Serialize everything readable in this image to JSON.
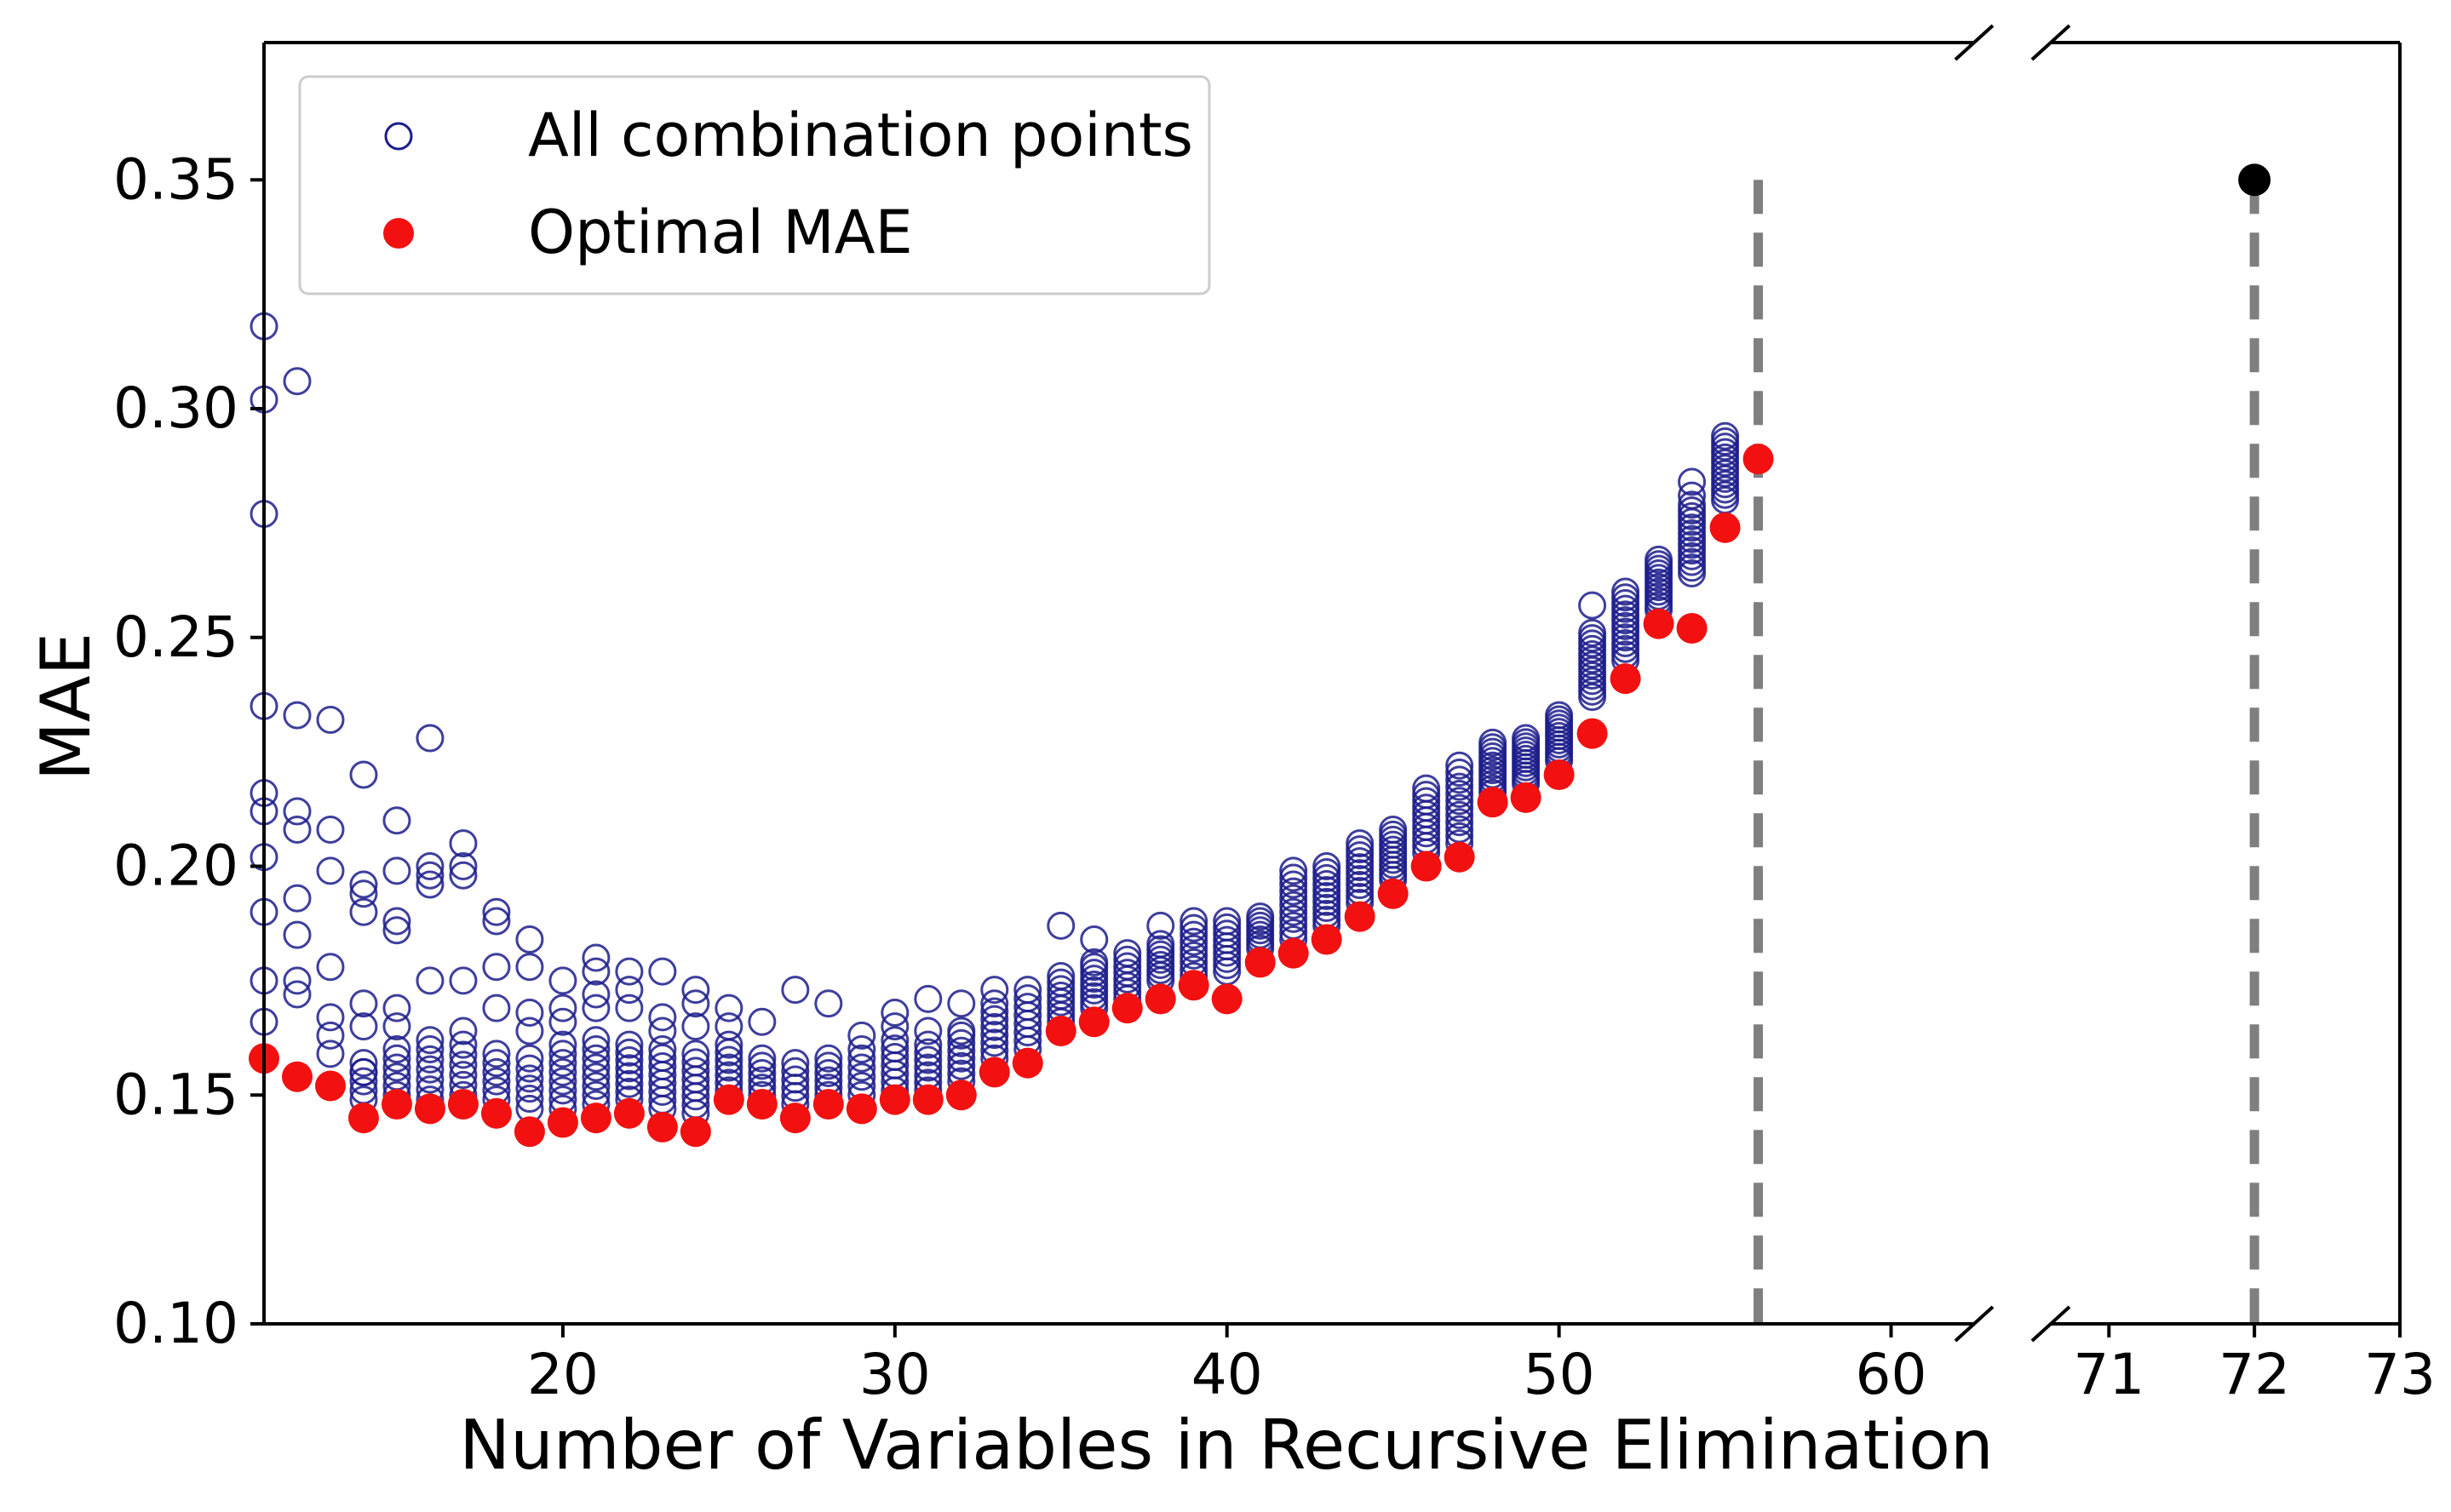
{
  "chart_data": {
    "type": "scatter",
    "xlabel": "Number of Variables in Recursive Elimination",
    "ylabel": "MAE",
    "ylim": [
      0.1,
      0.38
    ],
    "yticks": [
      "0.10",
      "0.15",
      "0.20",
      "0.25",
      "0.30",
      "0.35"
    ],
    "x_axis_segments": [
      {
        "xlim": [
          11,
          62.5
        ],
        "ticks": [
          "20",
          "30",
          "40",
          "50",
          "60"
        ]
      },
      {
        "xlim": [
          70.6,
          73
        ],
        "ticks": [
          "71",
          "72",
          "73"
        ]
      }
    ],
    "x_axis_break": true,
    "legend": {
      "position": "top-left",
      "entries": [
        "All combination points",
        "Optimal MAE"
      ]
    },
    "grid": false,
    "colors": {
      "all_points": "#1c1c8c",
      "optimal": "#f21010",
      "full_model": "#000000",
      "reference_line": "#7f7f7f"
    },
    "series": [
      {
        "name": "All combination points",
        "marker": "open-circle",
        "outliers": [
          [
            11,
            0.318
          ],
          [
            11,
            0.302
          ],
          [
            11,
            0.277
          ],
          [
            11,
            0.235
          ],
          [
            11,
            0.216
          ],
          [
            11,
            0.212
          ],
          [
            11,
            0.202
          ],
          [
            11,
            0.19
          ],
          [
            11,
            0.175
          ],
          [
            11,
            0.166
          ],
          [
            12,
            0.306
          ],
          [
            12,
            0.233
          ],
          [
            12,
            0.212
          ],
          [
            12,
            0.208
          ],
          [
            12,
            0.193
          ],
          [
            12,
            0.185
          ],
          [
            12,
            0.175
          ],
          [
            12,
            0.172
          ],
          [
            13,
            0.232
          ],
          [
            13,
            0.208
          ],
          [
            13,
            0.199
          ],
          [
            13,
            0.178
          ],
          [
            13,
            0.167
          ],
          [
            13,
            0.163
          ],
          [
            13,
            0.159
          ],
          [
            14,
            0.22
          ],
          [
            14,
            0.196
          ],
          [
            14,
            0.194
          ],
          [
            14,
            0.19
          ],
          [
            14,
            0.17
          ],
          [
            14,
            0.165
          ],
          [
            14,
            0.155
          ],
          [
            15,
            0.21
          ],
          [
            15,
            0.199
          ],
          [
            15,
            0.188
          ],
          [
            15,
            0.186
          ],
          [
            15,
            0.169
          ],
          [
            15,
            0.165
          ],
          [
            16,
            0.228
          ],
          [
            16,
            0.2
          ],
          [
            16,
            0.198
          ],
          [
            16,
            0.196
          ],
          [
            16,
            0.175
          ],
          [
            16,
            0.162
          ],
          [
            17,
            0.205
          ],
          [
            17,
            0.2
          ],
          [
            17,
            0.198
          ],
          [
            17,
            0.175
          ],
          [
            17,
            0.164
          ],
          [
            18,
            0.19
          ],
          [
            18,
            0.188
          ],
          [
            18,
            0.178
          ],
          [
            18,
            0.169
          ],
          [
            19,
            0.184
          ],
          [
            19,
            0.178
          ],
          [
            19,
            0.168
          ],
          [
            19,
            0.164
          ],
          [
            20,
            0.175
          ],
          [
            20,
            0.169
          ],
          [
            20,
            0.166
          ],
          [
            21,
            0.18
          ],
          [
            21,
            0.177
          ],
          [
            21,
            0.172
          ],
          [
            21,
            0.169
          ],
          [
            22,
            0.177
          ],
          [
            22,
            0.173
          ],
          [
            22,
            0.169
          ],
          [
            23,
            0.177
          ],
          [
            23,
            0.167
          ],
          [
            23,
            0.164
          ],
          [
            24,
            0.173
          ],
          [
            24,
            0.17
          ],
          [
            24,
            0.165
          ],
          [
            25,
            0.169
          ],
          [
            25,
            0.165
          ],
          [
            26,
            0.166
          ],
          [
            27,
            0.173
          ],
          [
            28,
            0.17
          ],
          [
            29,
            0.163
          ],
          [
            30,
            0.168
          ],
          [
            30,
            0.165
          ],
          [
            31,
            0.171
          ],
          [
            31,
            0.164
          ],
          [
            32,
            0.17
          ],
          [
            32,
            0.164
          ],
          [
            33,
            0.173
          ],
          [
            35,
            0.187
          ],
          [
            36,
            0.184
          ],
          [
            36,
            0.179
          ],
          [
            38,
            0.187
          ],
          [
            54,
            0.284
          ],
          [
            54,
            0.281
          ],
          [
            51,
            0.257
          ]
        ],
        "columns": [
          {
            "x": 14,
            "lo": 0.149,
            "hi": 0.157,
            "n": 5
          },
          {
            "x": 15,
            "lo": 0.15,
            "hi": 0.16,
            "n": 6
          },
          {
            "x": 16,
            "lo": 0.149,
            "hi": 0.16,
            "n": 6
          },
          {
            "x": 17,
            "lo": 0.15,
            "hi": 0.161,
            "n": 6
          },
          {
            "x": 18,
            "lo": 0.149,
            "hi": 0.159,
            "n": 6
          },
          {
            "x": 19,
            "lo": 0.147,
            "hi": 0.158,
            "n": 6
          },
          {
            "x": 20,
            "lo": 0.147,
            "hi": 0.161,
            "n": 8
          },
          {
            "x": 21,
            "lo": 0.148,
            "hi": 0.162,
            "n": 8
          },
          {
            "x": 22,
            "lo": 0.149,
            "hi": 0.161,
            "n": 8
          },
          {
            "x": 23,
            "lo": 0.147,
            "hi": 0.16,
            "n": 8
          },
          {
            "x": 24,
            "lo": 0.146,
            "hi": 0.159,
            "n": 8
          },
          {
            "x": 25,
            "lo": 0.151,
            "hi": 0.161,
            "n": 7
          },
          {
            "x": 26,
            "lo": 0.15,
            "hi": 0.158,
            "n": 6
          },
          {
            "x": 27,
            "lo": 0.148,
            "hi": 0.157,
            "n": 6
          },
          {
            "x": 28,
            "lo": 0.15,
            "hi": 0.158,
            "n": 6
          },
          {
            "x": 29,
            "lo": 0.15,
            "hi": 0.16,
            "n": 6
          },
          {
            "x": 30,
            "lo": 0.151,
            "hi": 0.162,
            "n": 7
          },
          {
            "x": 31,
            "lo": 0.151,
            "hi": 0.161,
            "n": 7
          },
          {
            "x": 32,
            "lo": 0.153,
            "hi": 0.163,
            "n": 7
          },
          {
            "x": 33,
            "lo": 0.158,
            "hi": 0.17,
            "n": 8
          },
          {
            "x": 34,
            "lo": 0.16,
            "hi": 0.173,
            "n": 8
          },
          {
            "x": 35,
            "lo": 0.166,
            "hi": 0.176,
            "n": 8
          },
          {
            "x": 36,
            "lo": 0.169,
            "hi": 0.178,
            "n": 8
          },
          {
            "x": 37,
            "lo": 0.171,
            "hi": 0.181,
            "n": 8
          },
          {
            "x": 38,
            "lo": 0.175,
            "hi": 0.183,
            "n": 8
          },
          {
            "x": 39,
            "lo": 0.176,
            "hi": 0.188,
            "n": 9
          },
          {
            "x": 40,
            "lo": 0.177,
            "hi": 0.188,
            "n": 9
          },
          {
            "x": 41,
            "lo": 0.182,
            "hi": 0.189,
            "n": 8
          },
          {
            "x": 42,
            "lo": 0.184,
            "hi": 0.199,
            "n": 11
          },
          {
            "x": 43,
            "lo": 0.187,
            "hi": 0.2,
            "n": 11
          },
          {
            "x": 44,
            "lo": 0.192,
            "hi": 0.205,
            "n": 11
          },
          {
            "x": 45,
            "lo": 0.197,
            "hi": 0.208,
            "n": 11
          },
          {
            "x": 46,
            "lo": 0.203,
            "hi": 0.217,
            "n": 11
          },
          {
            "x": 47,
            "lo": 0.205,
            "hi": 0.222,
            "n": 12
          },
          {
            "x": 48,
            "lo": 0.216,
            "hi": 0.227,
            "n": 12
          },
          {
            "x": 49,
            "lo": 0.218,
            "hi": 0.228,
            "n": 12
          },
          {
            "x": 50,
            "lo": 0.223,
            "hi": 0.233,
            "n": 12
          },
          {
            "x": 51,
            "lo": 0.237,
            "hi": 0.251,
            "n": 13
          },
          {
            "x": 52,
            "lo": 0.245,
            "hi": 0.26,
            "n": 13
          },
          {
            "x": 53,
            "lo": 0.256,
            "hi": 0.267,
            "n": 12
          },
          {
            "x": 54,
            "lo": 0.264,
            "hi": 0.279,
            "n": 13
          },
          {
            "x": 55,
            "lo": 0.28,
            "hi": 0.294,
            "n": 13
          }
        ]
      },
      {
        "name": "Optimal MAE",
        "marker": "filled-circle",
        "points": [
          [
            11,
            0.158
          ],
          [
            12,
            0.154
          ],
          [
            13,
            0.152
          ],
          [
            14,
            0.145
          ],
          [
            15,
            0.148
          ],
          [
            16,
            0.147
          ],
          [
            17,
            0.148
          ],
          [
            18,
            0.146
          ],
          [
            19,
            0.142
          ],
          [
            20,
            0.144
          ],
          [
            21,
            0.145
          ],
          [
            22,
            0.146
          ],
          [
            23,
            0.143
          ],
          [
            24,
            0.142
          ],
          [
            25,
            0.149
          ],
          [
            26,
            0.148
          ],
          [
            27,
            0.145
          ],
          [
            28,
            0.148
          ],
          [
            29,
            0.147
          ],
          [
            30,
            0.149
          ],
          [
            31,
            0.149
          ],
          [
            32,
            0.15
          ],
          [
            33,
            0.155
          ],
          [
            34,
            0.157
          ],
          [
            35,
            0.164
          ],
          [
            36,
            0.166
          ],
          [
            37,
            0.169
          ],
          [
            38,
            0.171
          ],
          [
            39,
            0.174
          ],
          [
            40,
            0.171
          ],
          [
            41,
            0.179
          ],
          [
            42,
            0.181
          ],
          [
            43,
            0.184
          ],
          [
            44,
            0.189
          ],
          [
            45,
            0.194
          ],
          [
            46,
            0.2
          ],
          [
            47,
            0.202
          ],
          [
            48,
            0.214
          ],
          [
            49,
            0.215
          ],
          [
            50,
            0.22
          ],
          [
            51,
            0.229
          ],
          [
            52,
            0.241
          ],
          [
            53,
            0.253
          ],
          [
            54,
            0.252
          ],
          [
            55,
            0.274
          ],
          [
            56,
            0.289
          ]
        ]
      }
    ],
    "full_model_point": [
      72,
      0.35
    ],
    "vertical_dashed_lines": [
      56,
      72
    ],
    "dashed_line_top": 0.35
  }
}
